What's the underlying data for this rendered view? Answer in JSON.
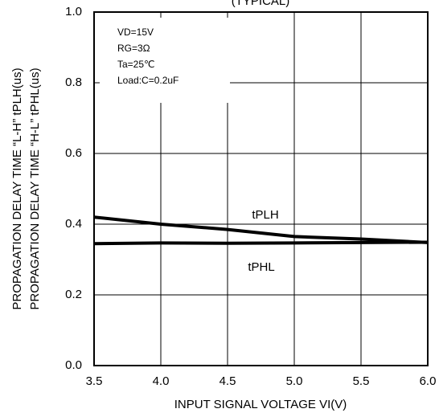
{
  "chart_data": {
    "type": "line",
    "title": "(TYPICAL)",
    "xlabel": "INPUT SIGNAL VOLTAGE  VI(V)",
    "ylabel": [
      "PROPAGATION  DELAY  TIME  “L-H”  tPLH(us)",
      "PROPAGATION  DELAY  TIME  “H-L”  tPHL(us)"
    ],
    "x": [
      3.5,
      4.0,
      4.5,
      5.0,
      5.5,
      6.0
    ],
    "series": [
      {
        "name": "tPLH",
        "color": "#000000",
        "values": [
          0.42,
          0.4,
          0.385,
          0.365,
          0.358,
          0.348
        ]
      },
      {
        "name": "tPHL",
        "color": "#000000",
        "values": [
          0.345,
          0.347,
          0.346,
          0.347,
          0.348,
          0.349
        ]
      }
    ],
    "xlim": [
      3.5,
      6.0
    ],
    "xticks": [
      {
        "value": 3.5,
        "label": "3.5"
      },
      {
        "value": 4,
        "label": "4.0"
      },
      {
        "value": 4.5,
        "label": "4.5"
      },
      {
        "value": 5,
        "label": "5.0"
      },
      {
        "value": 5.5,
        "label": "5.5"
      },
      {
        "value": 6,
        "label": "6.0"
      }
    ],
    "ylim": [
      0,
      1
    ],
    "yticks": [
      {
        "value": 0,
        "label": "0.0"
      },
      0.2,
      0.4,
      0.6,
      0.8,
      {
        "value": 1,
        "label": "1.0"
      }
    ],
    "grid": true,
    "conditions": [
      "VD=15V",
      "RG=3Ω",
      "Ta=25℃",
      "Load:C=0.2uF"
    ]
  }
}
